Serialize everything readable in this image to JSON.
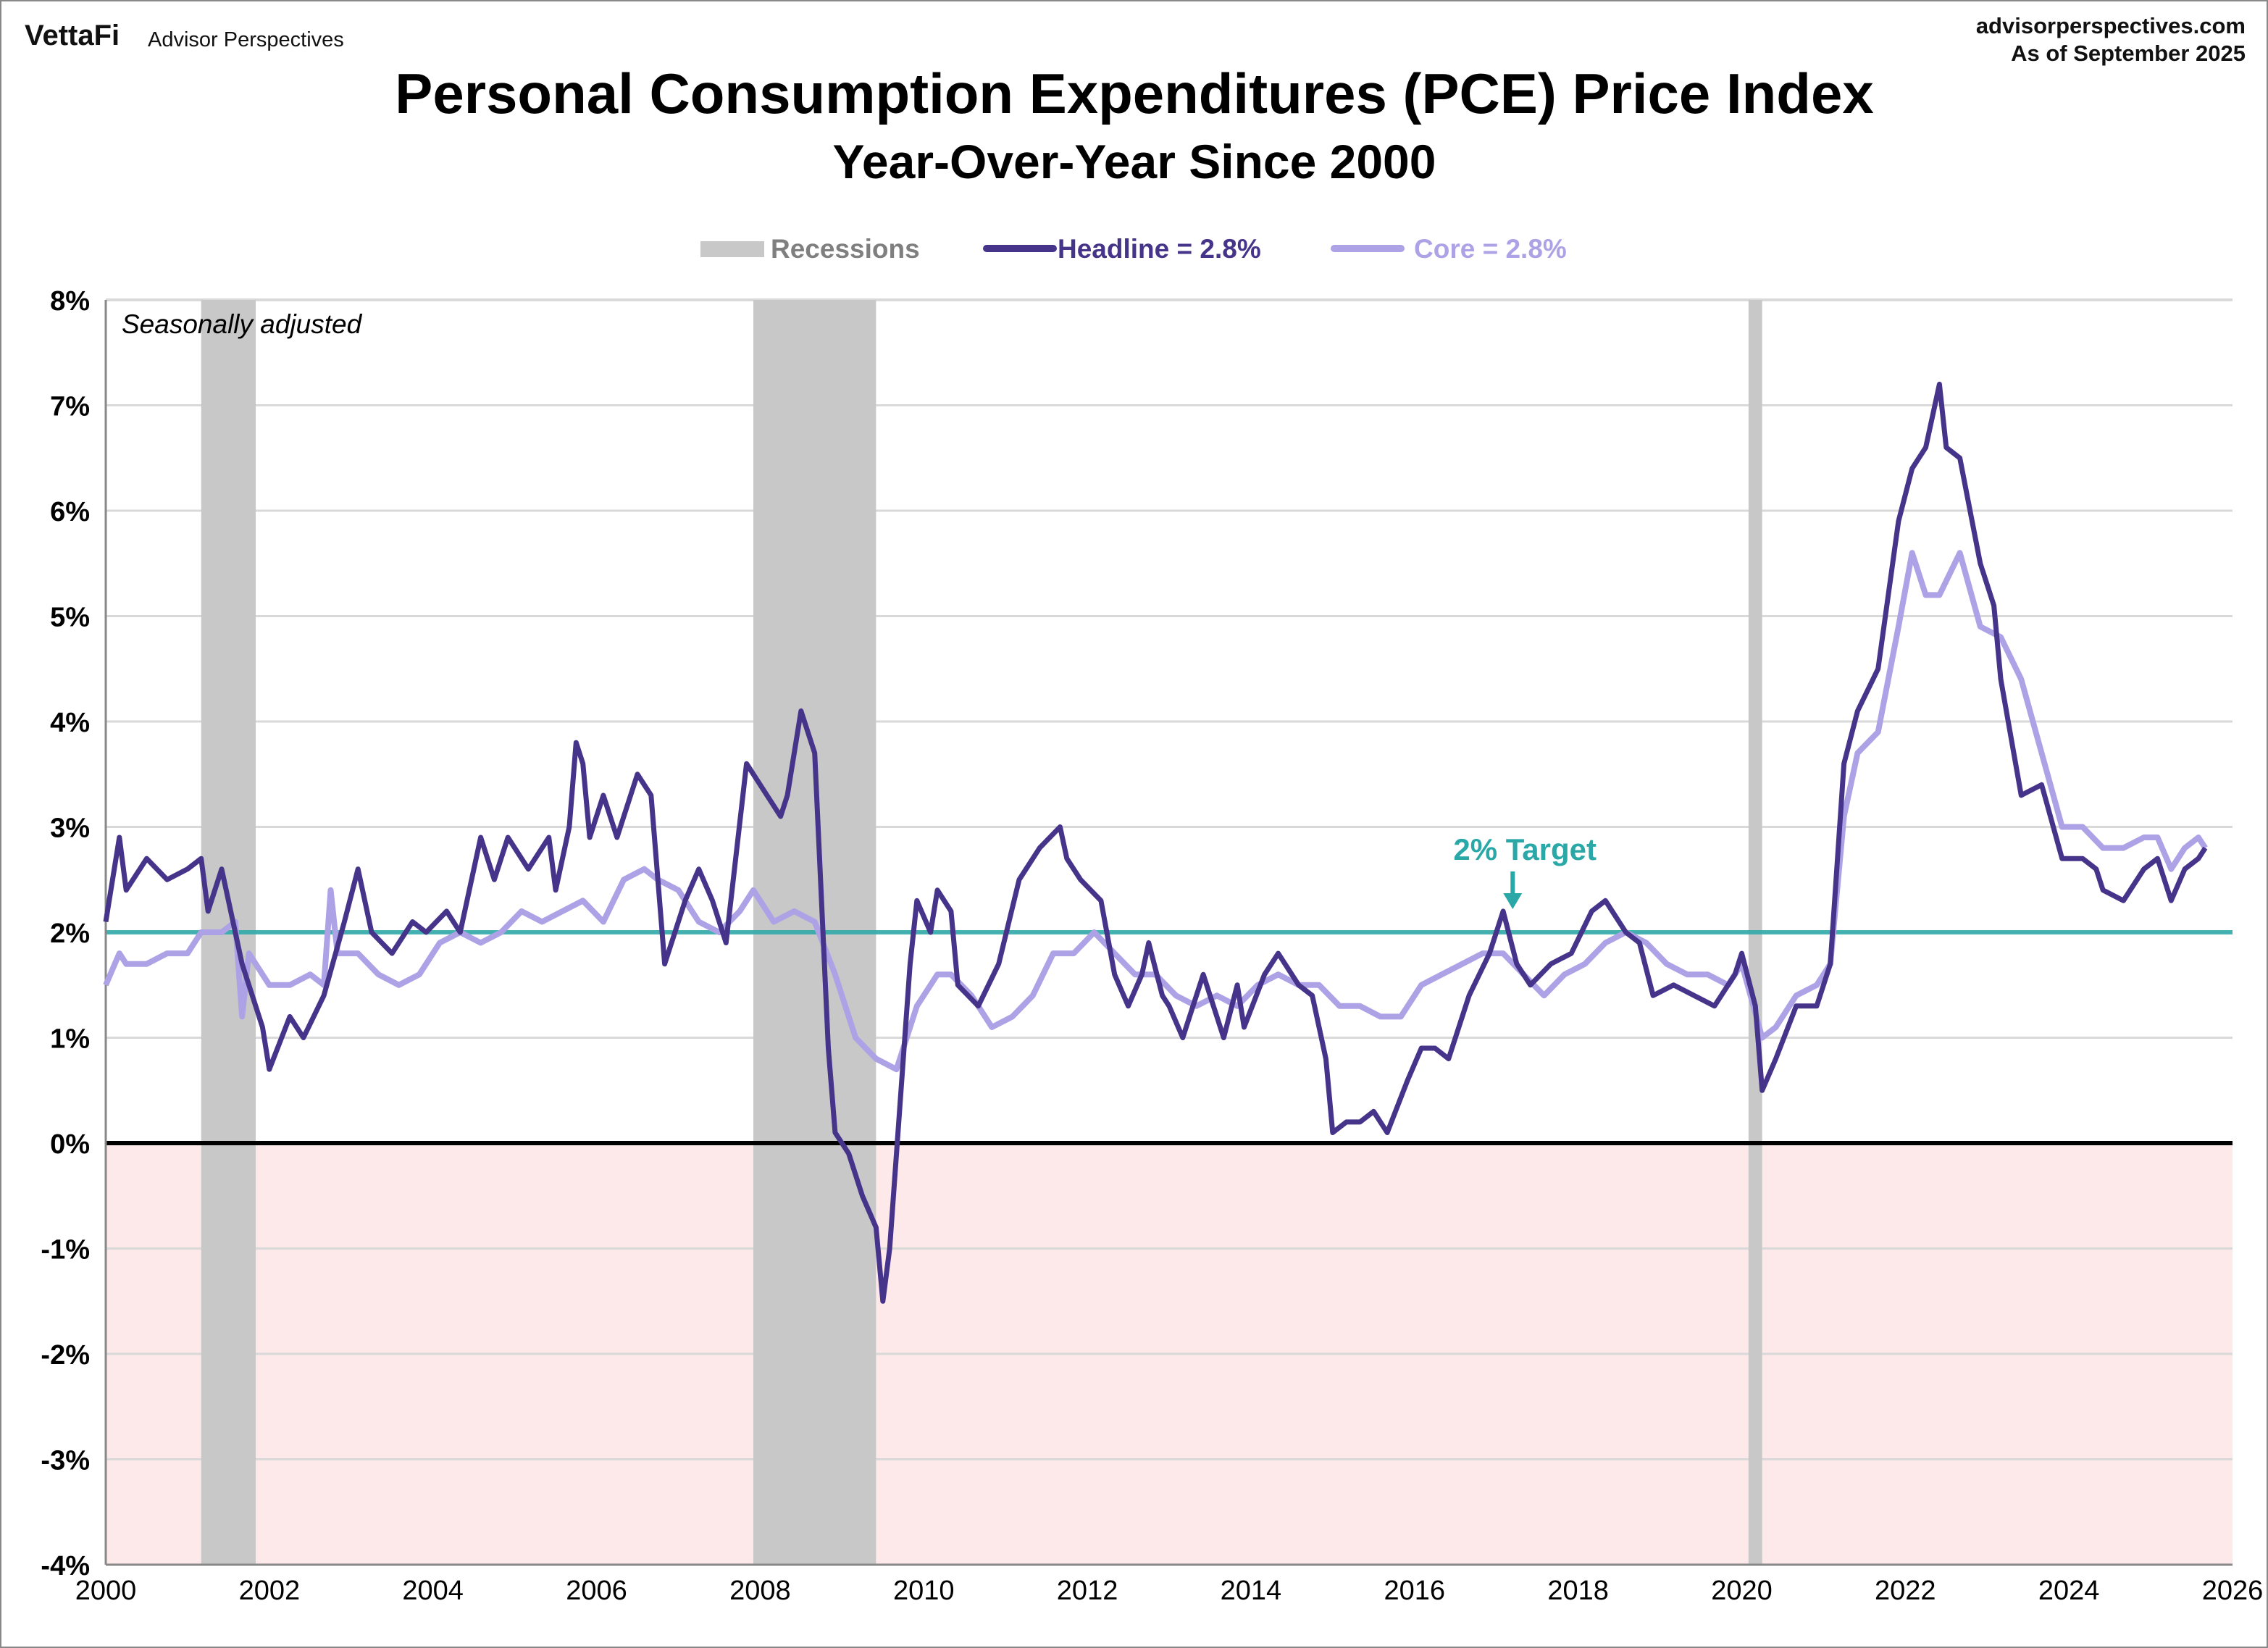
{
  "header": {
    "logo": "VettaFi",
    "brand": "Advisor Perspectives",
    "site": "advisorperspectives.com",
    "as_of": "As of September 2025"
  },
  "chart_data": {
    "type": "line",
    "title": "Personal Consumption Expenditures (PCE) Price Index",
    "subtitle": "Year-Over-Year Since 2000",
    "note": "Seasonally adjusted",
    "xlim": [
      2000,
      2026
    ],
    "ylim": [
      -4,
      8
    ],
    "x_ticks": [
      "2000",
      "2002",
      "2004",
      "2006",
      "2008",
      "2010",
      "2012",
      "2014",
      "2016",
      "2018",
      "2020",
      "2022",
      "2024",
      "2026"
    ],
    "y_ticks": [
      "-4%",
      "-3%",
      "-2%",
      "-1%",
      "0%",
      "1%",
      "2%",
      "3%",
      "4%",
      "5%",
      "6%",
      "7%",
      "8%"
    ],
    "grid": true,
    "legend_position": "top-center",
    "legend": {
      "recessions": "Recessions",
      "headline": "Headline = 2.8%",
      "core": "Core = 2.8%"
    },
    "target": {
      "value": 2,
      "label": "2% Target",
      "color": "#2aa8a8"
    },
    "negative_zone_color": "#fde9e9",
    "recessions": [
      [
        "2001-03",
        "2001-11"
      ],
      [
        "2007-12",
        "2009-06"
      ],
      [
        "2020-02",
        "2020-04"
      ]
    ],
    "series": [
      {
        "name": "Headline",
        "color": "#46348a",
        "points": [
          [
            "2000-01",
            2.1
          ],
          [
            "2000-03",
            2.9
          ],
          [
            "2000-04",
            2.4
          ],
          [
            "2000-07",
            2.7
          ],
          [
            "2000-10",
            2.5
          ],
          [
            "2001-01",
            2.6
          ],
          [
            "2001-03",
            2.7
          ],
          [
            "2001-04",
            2.2
          ],
          [
            "2001-06",
            2.6
          ],
          [
            "2001-09",
            1.7
          ],
          [
            "2001-12",
            1.1
          ],
          [
            "2002-01",
            0.7
          ],
          [
            "2002-04",
            1.2
          ],
          [
            "2002-06",
            1.0
          ],
          [
            "2002-09",
            1.4
          ],
          [
            "2002-12",
            2.1
          ],
          [
            "2003-02",
            2.6
          ],
          [
            "2003-04",
            2.0
          ],
          [
            "2003-07",
            1.8
          ],
          [
            "2003-10",
            2.1
          ],
          [
            "2003-12",
            2.0
          ],
          [
            "2004-03",
            2.2
          ],
          [
            "2004-05",
            2.0
          ],
          [
            "2004-08",
            2.9
          ],
          [
            "2004-10",
            2.5
          ],
          [
            "2004-12",
            2.9
          ],
          [
            "2005-03",
            2.6
          ],
          [
            "2005-06",
            2.9
          ],
          [
            "2005-07",
            2.4
          ],
          [
            "2005-09",
            3.0
          ],
          [
            "2005-10",
            3.8
          ],
          [
            "2005-11",
            3.6
          ],
          [
            "2005-12",
            2.9
          ],
          [
            "2006-02",
            3.3
          ],
          [
            "2006-04",
            2.9
          ],
          [
            "2006-07",
            3.5
          ],
          [
            "2006-09",
            3.3
          ],
          [
            "2006-11",
            1.7
          ],
          [
            "2007-02",
            2.3
          ],
          [
            "2007-04",
            2.6
          ],
          [
            "2007-06",
            2.3
          ],
          [
            "2007-08",
            1.9
          ],
          [
            "2007-11",
            3.6
          ],
          [
            "2008-02",
            3.3
          ],
          [
            "2008-04",
            3.1
          ],
          [
            "2008-05",
            3.3
          ],
          [
            "2008-07",
            4.1
          ],
          [
            "2008-09",
            3.7
          ],
          [
            "2008-11",
            0.9
          ],
          [
            "2008-12",
            0.1
          ],
          [
            "2009-02",
            -0.1
          ],
          [
            "2009-04",
            -0.5
          ],
          [
            "2009-06",
            -0.8
          ],
          [
            "2009-07",
            -1.5
          ],
          [
            "2009-08",
            -1.0
          ],
          [
            "2009-11",
            1.7
          ],
          [
            "2009-12",
            2.3
          ],
          [
            "2010-02",
            2.0
          ],
          [
            "2010-03",
            2.4
          ],
          [
            "2010-05",
            2.2
          ],
          [
            "2010-06",
            1.5
          ],
          [
            "2010-09",
            1.3
          ],
          [
            "2010-12",
            1.7
          ],
          [
            "2011-03",
            2.5
          ],
          [
            "2011-06",
            2.8
          ],
          [
            "2011-09",
            3.0
          ],
          [
            "2011-10",
            2.7
          ],
          [
            "2011-12",
            2.5
          ],
          [
            "2012-03",
            2.3
          ],
          [
            "2012-05",
            1.6
          ],
          [
            "2012-07",
            1.3
          ],
          [
            "2012-09",
            1.6
          ],
          [
            "2012-10",
            1.9
          ],
          [
            "2012-12",
            1.4
          ],
          [
            "2013-01",
            1.3
          ],
          [
            "2013-03",
            1.0
          ],
          [
            "2013-06",
            1.6
          ],
          [
            "2013-09",
            1.0
          ],
          [
            "2013-11",
            1.5
          ],
          [
            "2013-12",
            1.1
          ],
          [
            "2014-03",
            1.6
          ],
          [
            "2014-05",
            1.8
          ],
          [
            "2014-08",
            1.5
          ],
          [
            "2014-10",
            1.4
          ],
          [
            "2014-12",
            0.8
          ],
          [
            "2015-01",
            0.1
          ],
          [
            "2015-03",
            0.2
          ],
          [
            "2015-05",
            0.2
          ],
          [
            "2015-07",
            0.3
          ],
          [
            "2015-09",
            0.1
          ],
          [
            "2015-12",
            0.6
          ],
          [
            "2016-02",
            0.9
          ],
          [
            "2016-04",
            0.9
          ],
          [
            "2016-06",
            0.8
          ],
          [
            "2016-09",
            1.4
          ],
          [
            "2016-12",
            1.8
          ],
          [
            "2017-02",
            2.2
          ],
          [
            "2017-04",
            1.7
          ],
          [
            "2017-06",
            1.5
          ],
          [
            "2017-09",
            1.7
          ],
          [
            "2017-12",
            1.8
          ],
          [
            "2018-03",
            2.2
          ],
          [
            "2018-05",
            2.3
          ],
          [
            "2018-08",
            2.0
          ],
          [
            "2018-10",
            1.9
          ],
          [
            "2018-12",
            1.4
          ],
          [
            "2019-03",
            1.5
          ],
          [
            "2019-06",
            1.4
          ],
          [
            "2019-09",
            1.3
          ],
          [
            "2019-12",
            1.6
          ],
          [
            "2020-01",
            1.8
          ],
          [
            "2020-03",
            1.3
          ],
          [
            "2020-04",
            0.5
          ],
          [
            "2020-06",
            0.8
          ],
          [
            "2020-09",
            1.3
          ],
          [
            "2020-12",
            1.3
          ],
          [
            "2021-02",
            1.7
          ],
          [
            "2021-04",
            3.6
          ],
          [
            "2021-06",
            4.1
          ],
          [
            "2021-09",
            4.5
          ],
          [
            "2021-12",
            5.9
          ],
          [
            "2022-02",
            6.4
          ],
          [
            "2022-04",
            6.6
          ],
          [
            "2022-06",
            7.2
          ],
          [
            "2022-07",
            6.6
          ],
          [
            "2022-09",
            6.5
          ],
          [
            "2022-12",
            5.5
          ],
          [
            "2023-02",
            5.1
          ],
          [
            "2023-03",
            4.4
          ],
          [
            "2023-06",
            3.3
          ],
          [
            "2023-09",
            3.4
          ],
          [
            "2023-12",
            2.7
          ],
          [
            "2024-03",
            2.7
          ],
          [
            "2024-05",
            2.6
          ],
          [
            "2024-06",
            2.4
          ],
          [
            "2024-09",
            2.3
          ],
          [
            "2024-12",
            2.6
          ],
          [
            "2025-02",
            2.7
          ],
          [
            "2025-04",
            2.3
          ],
          [
            "2025-06",
            2.6
          ],
          [
            "2025-08",
            2.7
          ],
          [
            "2025-09",
            2.8
          ]
        ]
      },
      {
        "name": "Core",
        "color": "#ada2e6",
        "points": [
          [
            "2000-01",
            1.5
          ],
          [
            "2000-03",
            1.8
          ],
          [
            "2000-04",
            1.7
          ],
          [
            "2000-07",
            1.7
          ],
          [
            "2000-10",
            1.8
          ],
          [
            "2001-01",
            1.8
          ],
          [
            "2001-03",
            2.0
          ],
          [
            "2001-06",
            2.0
          ],
          [
            "2001-08",
            2.1
          ],
          [
            "2001-09",
            1.2
          ],
          [
            "2001-10",
            1.8
          ],
          [
            "2002-01",
            1.5
          ],
          [
            "2002-04",
            1.5
          ],
          [
            "2002-07",
            1.6
          ],
          [
            "2002-09",
            1.5
          ],
          [
            "2002-10",
            2.4
          ],
          [
            "2002-11",
            1.8
          ],
          [
            "2003-02",
            1.8
          ],
          [
            "2003-05",
            1.6
          ],
          [
            "2003-08",
            1.5
          ],
          [
            "2003-11",
            1.6
          ],
          [
            "2004-02",
            1.9
          ],
          [
            "2004-05",
            2.0
          ],
          [
            "2004-08",
            1.9
          ],
          [
            "2004-11",
            2.0
          ],
          [
            "2005-02",
            2.2
          ],
          [
            "2005-05",
            2.1
          ],
          [
            "2005-08",
            2.2
          ],
          [
            "2005-11",
            2.3
          ],
          [
            "2006-02",
            2.1
          ],
          [
            "2006-05",
            2.5
          ],
          [
            "2006-08",
            2.6
          ],
          [
            "2006-10",
            2.5
          ],
          [
            "2007-01",
            2.4
          ],
          [
            "2007-04",
            2.1
          ],
          [
            "2007-07",
            2.0
          ],
          [
            "2007-10",
            2.2
          ],
          [
            "2007-12",
            2.4
          ],
          [
            "2008-03",
            2.1
          ],
          [
            "2008-06",
            2.2
          ],
          [
            "2008-09",
            2.1
          ],
          [
            "2008-12",
            1.6
          ],
          [
            "2009-03",
            1.0
          ],
          [
            "2009-06",
            0.8
          ],
          [
            "2009-09",
            0.7
          ],
          [
            "2009-12",
            1.3
          ],
          [
            "2010-03",
            1.6
          ],
          [
            "2010-05",
            1.6
          ],
          [
            "2010-08",
            1.4
          ],
          [
            "2010-11",
            1.1
          ],
          [
            "2011-02",
            1.2
          ],
          [
            "2011-05",
            1.4
          ],
          [
            "2011-08",
            1.8
          ],
          [
            "2011-11",
            1.8
          ],
          [
            "2012-02",
            2.0
          ],
          [
            "2012-05",
            1.8
          ],
          [
            "2012-08",
            1.6
          ],
          [
            "2012-11",
            1.6
          ],
          [
            "2013-02",
            1.4
          ],
          [
            "2013-05",
            1.3
          ],
          [
            "2013-08",
            1.4
          ],
          [
            "2013-11",
            1.3
          ],
          [
            "2014-02",
            1.5
          ],
          [
            "2014-05",
            1.6
          ],
          [
            "2014-08",
            1.5
          ],
          [
            "2014-11",
            1.5
          ],
          [
            "2015-02",
            1.3
          ],
          [
            "2015-05",
            1.3
          ],
          [
            "2015-08",
            1.2
          ],
          [
            "2015-11",
            1.2
          ],
          [
            "2016-02",
            1.5
          ],
          [
            "2016-05",
            1.6
          ],
          [
            "2016-08",
            1.7
          ],
          [
            "2016-11",
            1.8
          ],
          [
            "2017-02",
            1.8
          ],
          [
            "2017-05",
            1.6
          ],
          [
            "2017-08",
            1.4
          ],
          [
            "2017-11",
            1.6
          ],
          [
            "2018-02",
            1.7
          ],
          [
            "2018-05",
            1.9
          ],
          [
            "2018-08",
            2.0
          ],
          [
            "2018-11",
            1.9
          ],
          [
            "2019-02",
            1.7
          ],
          [
            "2019-05",
            1.6
          ],
          [
            "2019-08",
            1.6
          ],
          [
            "2019-11",
            1.5
          ],
          [
            "2020-01",
            1.7
          ],
          [
            "2020-04",
            1.0
          ],
          [
            "2020-06",
            1.1
          ],
          [
            "2020-09",
            1.4
          ],
          [
            "2020-12",
            1.5
          ],
          [
            "2021-02",
            1.7
          ],
          [
            "2021-04",
            3.1
          ],
          [
            "2021-06",
            3.7
          ],
          [
            "2021-09",
            3.9
          ],
          [
            "2021-12",
            4.9
          ],
          [
            "2022-02",
            5.6
          ],
          [
            "2022-04",
            5.2
          ],
          [
            "2022-06",
            5.2
          ],
          [
            "2022-09",
            5.6
          ],
          [
            "2022-12",
            4.9
          ],
          [
            "2023-03",
            4.8
          ],
          [
            "2023-06",
            4.4
          ],
          [
            "2023-09",
            3.7
          ],
          [
            "2023-12",
            3.0
          ],
          [
            "2024-03",
            3.0
          ],
          [
            "2024-06",
            2.8
          ],
          [
            "2024-09",
            2.8
          ],
          [
            "2024-12",
            2.9
          ],
          [
            "2025-02",
            2.9
          ],
          [
            "2025-04",
            2.6
          ],
          [
            "2025-06",
            2.8
          ],
          [
            "2025-08",
            2.9
          ],
          [
            "2025-09",
            2.8
          ]
        ]
      }
    ]
  }
}
